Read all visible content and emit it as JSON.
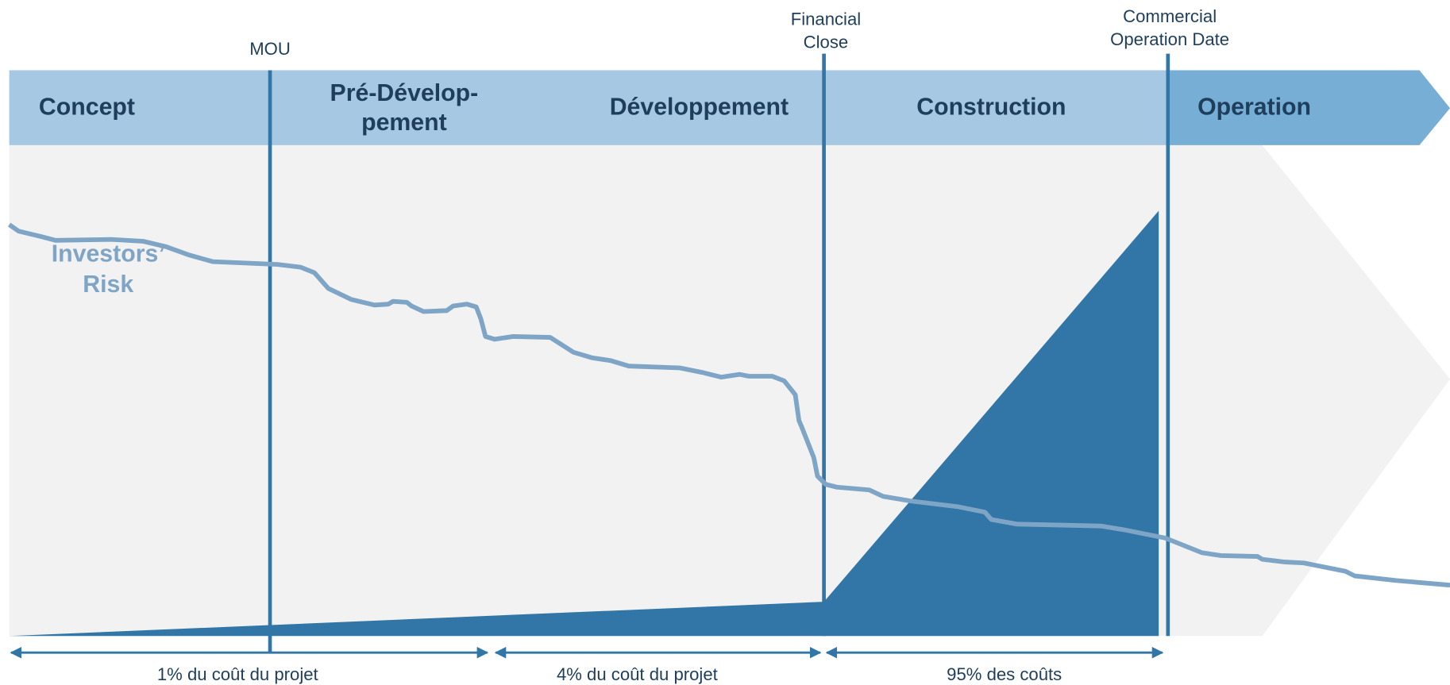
{
  "phases": [
    {
      "lines": [
        "Concept"
      ]
    },
    {
      "lines": [
        "Pré-Dévelop-",
        "pement"
      ]
    },
    {
      "lines": [
        "Développement"
      ]
    },
    {
      "lines": [
        "Construction"
      ]
    },
    {
      "lines": [
        "Operation"
      ]
    }
  ],
  "milestones": [
    {
      "lines": [
        "MOU"
      ]
    },
    {
      "lines": [
        "Financial",
        "Close"
      ]
    },
    {
      "lines": [
        "Commercial",
        "Operation Date"
      ]
    }
  ],
  "risk_label": {
    "lines": [
      "Investors’",
      "Risk"
    ]
  },
  "cost_shares": [
    "1% du coût du projet",
    "4% du coût du projet",
    "95% des coûts"
  ]
}
